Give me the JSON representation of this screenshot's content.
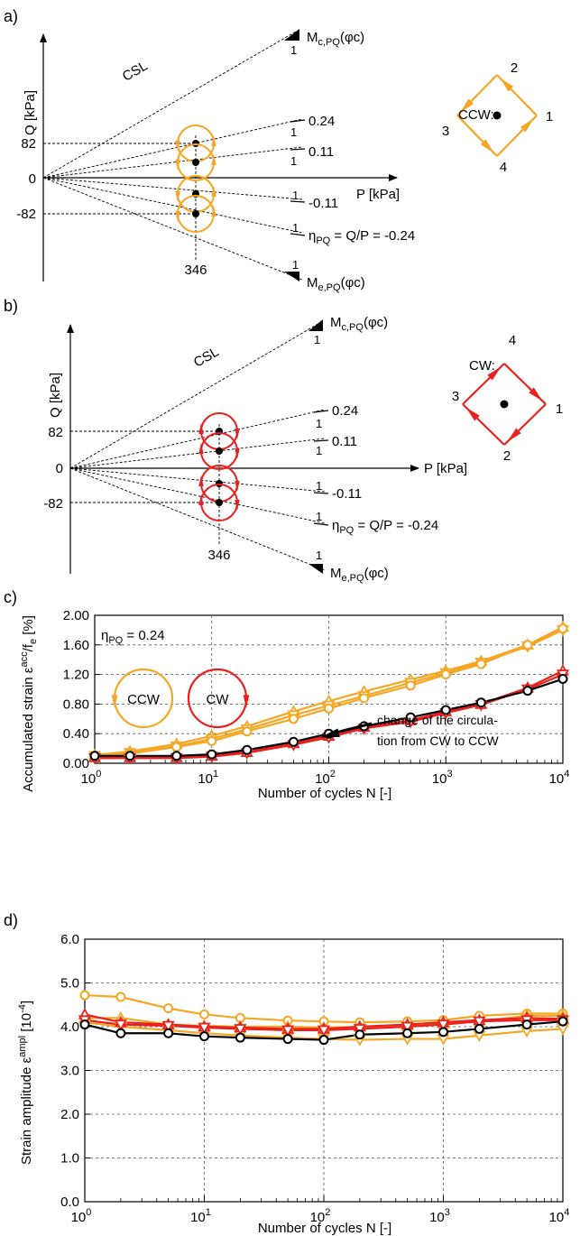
{
  "colors": {
    "ccw": "#f5a623",
    "cw": "#e8201e",
    "black": "#000000"
  },
  "panel_a": {
    "label": "a)",
    "y_axis_label": "Q [kPa]",
    "x_axis_label": "P [kPa]",
    "y_ticks": [
      "82",
      "0",
      "-82"
    ],
    "x_tick": "346",
    "csl_label": "CSL",
    "slope_one": "1",
    "mc_label": "M",
    "mc_sub": "c,PQ",
    "mc_arg": "(φc)",
    "me_label": "M",
    "me_sub": "e,PQ",
    "me_arg": "(φc)",
    "eta_024": "0.24",
    "eta_011": "0.11",
    "eta_m011": "-0.11",
    "eta_label": "η",
    "eta_sub": "PQ",
    "eta_formula": " = Q/P = -0.24",
    "direction_label": "CCW:",
    "corners": [
      "1",
      "2",
      "3",
      "4"
    ]
  },
  "panel_b": {
    "label": "b)",
    "y_axis_label": "Q [kPa]",
    "x_axis_label": "P [kPa]",
    "y_ticks": [
      "82",
      "0",
      "-82"
    ],
    "x_tick": "346",
    "csl_label": "CSL",
    "slope_one": "1",
    "mc_label": "M",
    "mc_sub": "c,PQ",
    "mc_arg": "(φc)",
    "me_label": "M",
    "me_sub": "e,PQ",
    "me_arg": "(φc)",
    "eta_024": "0.24",
    "eta_011": "0.11",
    "eta_m011": "-0.11",
    "eta_label": "η",
    "eta_sub": "PQ",
    "eta_formula": " = Q/P = -0.24",
    "direction_label": "CW:",
    "corners": [
      "1",
      "2",
      "3",
      "4"
    ]
  },
  "chart_data": [
    {
      "panel": "c)",
      "type": "line",
      "ylabel": "Accumulated strain ε",
      "ylabel_sup": "acc",
      "ylabel_tail": "/f",
      "ylabel_sub": "e",
      "ylabel_unit": " [%]",
      "xlabel": "Number of cycles N [-]",
      "x_scale": "log",
      "xlim": [
        1,
        10000
      ],
      "ylim": [
        0,
        2.0
      ],
      "y_ticks": [
        "0.00",
        "0.40",
        "0.80",
        "1.20",
        "1.60",
        "2.00"
      ],
      "x_ticks": [
        1,
        10,
        100,
        1000,
        10000
      ],
      "x_tick_base": "10",
      "x_tick_exps": [
        "0",
        "1",
        "2",
        "3",
        "4"
      ],
      "grid": true,
      "eta_label": "η",
      "eta_sub": "PQ",
      "eta_value": " = 0.24",
      "legend_ccw": "CCW",
      "legend_cw": "CW",
      "annotation": [
        "change of the circula-",
        "tion from CW to CCW"
      ],
      "series": [
        {
          "color": "ccw",
          "marker": "triangle-up",
          "x": [
            1,
            2,
            5,
            10,
            20,
            50,
            100,
            200,
            500,
            1000,
            2000,
            5000,
            10000
          ],
          "values": [
            0.11,
            0.16,
            0.26,
            0.37,
            0.5,
            0.7,
            0.84,
            0.97,
            1.13,
            1.25,
            1.38,
            1.6,
            1.84
          ]
        },
        {
          "color": "ccw",
          "marker": "triangle-down",
          "x": [
            1,
            2,
            5,
            10,
            20,
            50,
            100,
            200,
            500,
            1000,
            2000,
            5000,
            10000
          ],
          "values": [
            0.1,
            0.14,
            0.23,
            0.33,
            0.46,
            0.65,
            0.78,
            0.91,
            1.09,
            1.22,
            1.36,
            1.58,
            1.8
          ]
        },
        {
          "color": "ccw",
          "marker": "circle",
          "x": [
            1,
            2,
            5,
            10,
            20,
            50,
            100,
            200,
            500,
            1000,
            2000,
            5000,
            10000
          ],
          "values": [
            0.1,
            0.13,
            0.22,
            0.3,
            0.43,
            0.6,
            0.74,
            0.88,
            1.05,
            1.2,
            1.34,
            1.6,
            1.82
          ]
        },
        {
          "color": "cw",
          "marker": "triangle-up",
          "x": [
            1,
            2,
            5,
            10,
            20,
            50,
            100,
            200,
            500,
            1000,
            2000,
            5000,
            10000
          ],
          "values": [
            0.08,
            0.08,
            0.08,
            0.1,
            0.15,
            0.27,
            0.37,
            0.49,
            0.58,
            0.7,
            0.8,
            1.02,
            1.25
          ]
        },
        {
          "color": "cw",
          "marker": "triangle-down",
          "x": [
            1,
            2,
            5,
            10,
            20,
            50,
            100,
            200,
            500,
            1000,
            2000,
            5000,
            10000
          ],
          "values": [
            0.07,
            0.07,
            0.07,
            0.09,
            0.14,
            0.25,
            0.35,
            0.47,
            0.56,
            0.68,
            0.79,
            1.0,
            1.2
          ]
        },
        {
          "color": "black",
          "marker": "circle",
          "x": [
            1,
            2,
            5,
            10,
            20,
            50,
            100,
            200,
            500,
            1000,
            2000,
            5000,
            10000
          ],
          "values": [
            0.1,
            0.1,
            0.1,
            0.12,
            0.18,
            0.29,
            0.4,
            0.5,
            0.62,
            0.72,
            0.82,
            0.98,
            1.14
          ]
        }
      ]
    },
    {
      "panel": "d)",
      "type": "line",
      "ylabel": "Strain amplitude ε",
      "ylabel_sup": "ampl",
      "ylabel_unit": " [10",
      "ylabel_unit_sup": "-4",
      "ylabel_unit_close": "]",
      "xlabel": "Number of cycles N [-]",
      "x_scale": "log",
      "xlim": [
        1,
        10000
      ],
      "ylim": [
        0,
        6.0
      ],
      "y_ticks": [
        "0.0",
        "1.0",
        "2.0",
        "3.0",
        "4.0",
        "5.0",
        "6.0"
      ],
      "x_ticks": [
        1,
        10,
        100,
        1000,
        10000
      ],
      "x_tick_base": "10",
      "x_tick_exps": [
        "0",
        "1",
        "2",
        "3",
        "4"
      ],
      "grid": true,
      "series": [
        {
          "color": "ccw",
          "marker": "circle",
          "x": [
            1,
            2,
            5,
            10,
            20,
            50,
            100,
            200,
            500,
            1000,
            2000,
            5000,
            10000
          ],
          "values": [
            4.72,
            4.68,
            4.42,
            4.28,
            4.2,
            4.14,
            4.12,
            4.1,
            4.12,
            4.15,
            4.25,
            4.3,
            4.3
          ]
        },
        {
          "color": "ccw",
          "marker": "triangle-up",
          "x": [
            1,
            2,
            5,
            10,
            20,
            50,
            100,
            200,
            500,
            1000,
            2000,
            5000,
            10000
          ],
          "values": [
            4.2,
            4.2,
            4.05,
            4.02,
            4.0,
            4.0,
            3.98,
            4.0,
            4.02,
            4.06,
            4.12,
            4.25,
            4.25
          ]
        },
        {
          "color": "ccw",
          "marker": "triangle-down",
          "x": [
            1,
            2,
            5,
            10,
            20,
            50,
            100,
            200,
            500,
            1000,
            2000,
            5000,
            10000
          ],
          "values": [
            4.1,
            4.0,
            3.92,
            3.85,
            3.8,
            3.75,
            3.72,
            3.7,
            3.72,
            3.72,
            3.8,
            3.9,
            3.95
          ]
        },
        {
          "color": "cw",
          "marker": "triangle-up",
          "x": [
            1,
            2,
            5,
            10,
            20,
            50,
            100,
            200,
            500,
            1000,
            2000,
            5000,
            10000
          ],
          "values": [
            4.28,
            4.1,
            4.05,
            4.0,
            3.98,
            3.95,
            3.95,
            4.0,
            4.05,
            4.1,
            4.15,
            4.2,
            4.18
          ]
        },
        {
          "color": "cw",
          "marker": "triangle-down",
          "x": [
            1,
            2,
            5,
            10,
            20,
            50,
            100,
            200,
            500,
            1000,
            2000,
            5000,
            10000
          ],
          "values": [
            4.15,
            4.05,
            4.02,
            3.98,
            3.95,
            3.92,
            3.92,
            3.95,
            4.0,
            4.05,
            4.12,
            4.15,
            4.15
          ]
        },
        {
          "color": "black",
          "marker": "circle",
          "x": [
            1,
            2,
            5,
            10,
            20,
            50,
            100,
            200,
            500,
            1000,
            2000,
            5000,
            10000
          ],
          "values": [
            4.05,
            3.85,
            3.85,
            3.78,
            3.75,
            3.72,
            3.7,
            3.82,
            3.85,
            3.88,
            3.95,
            4.05,
            4.12
          ]
        }
      ]
    }
  ]
}
